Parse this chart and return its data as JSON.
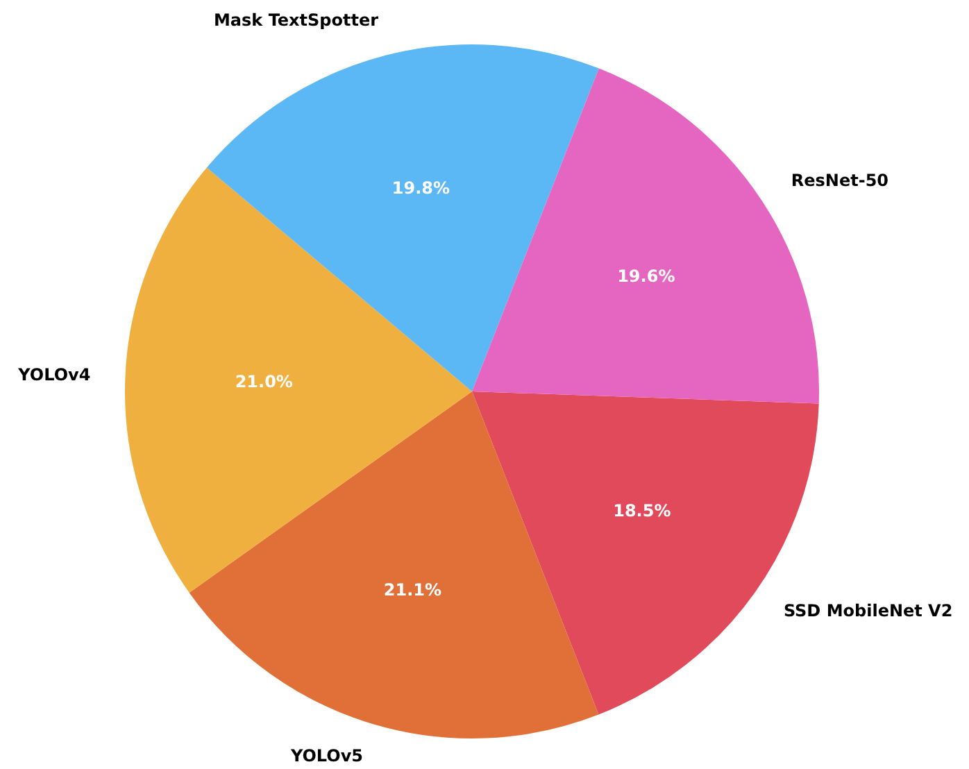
{
  "chart_data": {
    "type": "pie",
    "categories": [
      "SSD MobileNet V2",
      "YOLOv5",
      "YOLOv4",
      "Mask TextSpotter",
      "ResNet-50"
    ],
    "values": [
      18.5,
      21.1,
      21.0,
      19.8,
      19.6
    ],
    "colors": [
      "#e04a5a",
      "#e07038",
      "#f0b03f",
      "#5bb8f5",
      "#e466c0"
    ],
    "value_labels": [
      "18.5%",
      "21.1%",
      "21.0%",
      "19.8%",
      "19.6%"
    ],
    "legend": false
  }
}
